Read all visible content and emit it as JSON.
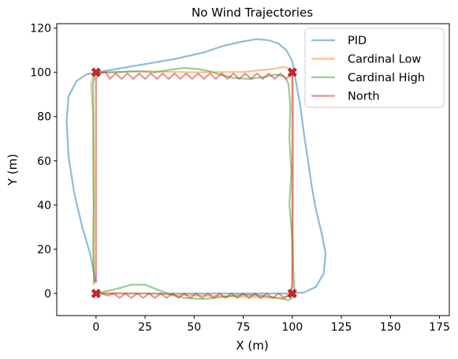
{
  "chart_data": {
    "type": "line",
    "title": "No Wind Trajectories",
    "xlabel": "X (m)",
    "ylabel": "Y (m)",
    "xlim": [
      -20,
      180
    ],
    "ylim": [
      -10,
      122
    ],
    "xticks": [
      0,
      25,
      50,
      75,
      100,
      125,
      150,
      175
    ],
    "yticks": [
      0,
      20,
      40,
      60,
      80,
      100,
      120
    ],
    "grid": false,
    "legend": "top-right",
    "series": [
      {
        "name": "PID",
        "color": "#1f77b4",
        "points": [
          [
            0,
            5
          ],
          [
            -3,
            18
          ],
          [
            -7,
            30
          ],
          [
            -11,
            45
          ],
          [
            -14,
            62
          ],
          [
            -15,
            78
          ],
          [
            -14,
            89
          ],
          [
            -10,
            96
          ],
          [
            -5,
            99
          ],
          [
            0,
            100
          ],
          [
            20,
            103
          ],
          [
            40,
            106
          ],
          [
            55,
            109
          ],
          [
            65,
            112
          ],
          [
            75,
            114
          ],
          [
            82,
            115
          ],
          [
            88,
            114.5
          ],
          [
            93,
            113
          ],
          [
            97,
            110
          ],
          [
            100,
            105
          ],
          [
            102,
            95
          ],
          [
            104,
            85
          ],
          [
            106,
            72
          ],
          [
            108,
            60
          ],
          [
            110,
            48
          ],
          [
            112,
            38
          ],
          [
            115,
            27
          ],
          [
            117,
            18
          ],
          [
            116,
            9
          ],
          [
            112,
            3
          ],
          [
            106,
            0.5
          ],
          [
            100,
            0
          ],
          [
            75,
            0
          ],
          [
            50,
            0
          ],
          [
            25,
            0
          ],
          [
            0,
            0
          ]
        ]
      },
      {
        "name": "Cardinal Low",
        "color": "#ff7f0e",
        "points": [
          [
            -1,
            5
          ],
          [
            -1,
            20
          ],
          [
            -1,
            40
          ],
          [
            -1,
            60
          ],
          [
            -1.5,
            80
          ],
          [
            -2.5,
            95
          ],
          [
            -1,
            99.5
          ],
          [
            1,
            100
          ],
          [
            25,
            100.5
          ],
          [
            50,
            100
          ],
          [
            75,
            100.2
          ],
          [
            90,
            101.5
          ],
          [
            96,
            102.5
          ],
          [
            100,
            101
          ],
          [
            100.5,
            80
          ],
          [
            100.5,
            60
          ],
          [
            100.3,
            40
          ],
          [
            100.3,
            20
          ],
          [
            100,
            5
          ],
          [
            99,
            -1
          ],
          [
            95,
            -2
          ],
          [
            75,
            -1.5
          ],
          [
            50,
            -0.8
          ],
          [
            25,
            0
          ],
          [
            10,
            0.2
          ],
          [
            0,
            0
          ]
        ]
      },
      {
        "name": "Cardinal High",
        "color": "#2ca02c",
        "points": [
          [
            -1,
            4
          ],
          [
            -1.5,
            20
          ],
          [
            -1.2,
            40
          ],
          [
            -1.5,
            60
          ],
          [
            -1.3,
            80
          ],
          [
            -1.5,
            95
          ],
          [
            0,
            100
          ],
          [
            10,
            100
          ],
          [
            20,
            100.5
          ],
          [
            30,
            100
          ],
          [
            38,
            101.2
          ],
          [
            45,
            102
          ],
          [
            52,
            101.5
          ],
          [
            58,
            100.5
          ],
          [
            63,
            99
          ],
          [
            70,
            97.5
          ],
          [
            78,
            97
          ],
          [
            85,
            97.8
          ],
          [
            92,
            99
          ],
          [
            96,
            98
          ],
          [
            98,
            95
          ],
          [
            99,
            85
          ],
          [
            98.5,
            70
          ],
          [
            99.5,
            55
          ],
          [
            98.5,
            40
          ],
          [
            100,
            25
          ],
          [
            100.5,
            12
          ],
          [
            101,
            2
          ],
          [
            100,
            -2
          ],
          [
            98,
            -3
          ],
          [
            92,
            -2
          ],
          [
            85,
            -1
          ],
          [
            75,
            -0.5
          ],
          [
            65,
            -1.5
          ],
          [
            55,
            -2.5
          ],
          [
            45,
            -2
          ],
          [
            38,
            -0.5
          ],
          [
            32,
            1.5
          ],
          [
            25,
            4
          ],
          [
            18,
            4
          ],
          [
            10,
            2
          ],
          [
            0,
            0
          ]
        ]
      },
      {
        "name": "North",
        "color": "#d62728",
        "points": [
          [
            0,
            5
          ],
          [
            0,
            20
          ],
          [
            0,
            40
          ],
          [
            0,
            60
          ],
          [
            0,
            80
          ],
          [
            0,
            97
          ],
          [
            1,
            99.5
          ],
          [
            5,
            100
          ],
          [
            7,
            97
          ],
          [
            10,
            99.5
          ],
          [
            13,
            97
          ],
          [
            16,
            99.5
          ],
          [
            19,
            97
          ],
          [
            22,
            99.5
          ],
          [
            25,
            97
          ],
          [
            28,
            99.5
          ],
          [
            31,
            97
          ],
          [
            34,
            99.5
          ],
          [
            37,
            97
          ],
          [
            40,
            99.5
          ],
          [
            43,
            97
          ],
          [
            46,
            99.5
          ],
          [
            49,
            97
          ],
          [
            52,
            99.5
          ],
          [
            55,
            97
          ],
          [
            58,
            99.5
          ],
          [
            61,
            97
          ],
          [
            64,
            99.5
          ],
          [
            67,
            97
          ],
          [
            70,
            99.5
          ],
          [
            73,
            97
          ],
          [
            76,
            99.5
          ],
          [
            79,
            97
          ],
          [
            82,
            99.5
          ],
          [
            85,
            97
          ],
          [
            88,
            99.5
          ],
          [
            91,
            97
          ],
          [
            94,
            99.5
          ],
          [
            97,
            97
          ],
          [
            99,
            99
          ],
          [
            100,
            100
          ],
          [
            100,
            80
          ],
          [
            100,
            60
          ],
          [
            100,
            40
          ],
          [
            100,
            20
          ],
          [
            100,
            3
          ],
          [
            99,
            0
          ],
          [
            96,
            -2
          ],
          [
            93,
            0
          ],
          [
            90,
            -2
          ],
          [
            87,
            0
          ],
          [
            84,
            -2
          ],
          [
            81,
            0
          ],
          [
            78,
            -2
          ],
          [
            75,
            0
          ],
          [
            72,
            -2
          ],
          [
            69,
            0
          ],
          [
            66,
            -2
          ],
          [
            63,
            0
          ],
          [
            60,
            -2
          ],
          [
            57,
            0
          ],
          [
            54,
            -2
          ],
          [
            51,
            0
          ],
          [
            48,
            -2
          ],
          [
            45,
            0
          ],
          [
            42,
            -2
          ],
          [
            39,
            0
          ],
          [
            36,
            -2
          ],
          [
            33,
            0
          ],
          [
            30,
            -2
          ],
          [
            27,
            0
          ],
          [
            24,
            -2
          ],
          [
            21,
            0
          ],
          [
            18,
            -2
          ],
          [
            15,
            0
          ],
          [
            12,
            -2
          ],
          [
            9,
            0
          ],
          [
            6,
            -1
          ],
          [
            3,
            0
          ],
          [
            0,
            0
          ]
        ]
      }
    ],
    "markers": {
      "type": "x",
      "color": "#d62728",
      "points": [
        [
          0,
          0
        ],
        [
          0,
          100
        ],
        [
          100,
          100
        ],
        [
          100,
          0
        ]
      ]
    }
  }
}
